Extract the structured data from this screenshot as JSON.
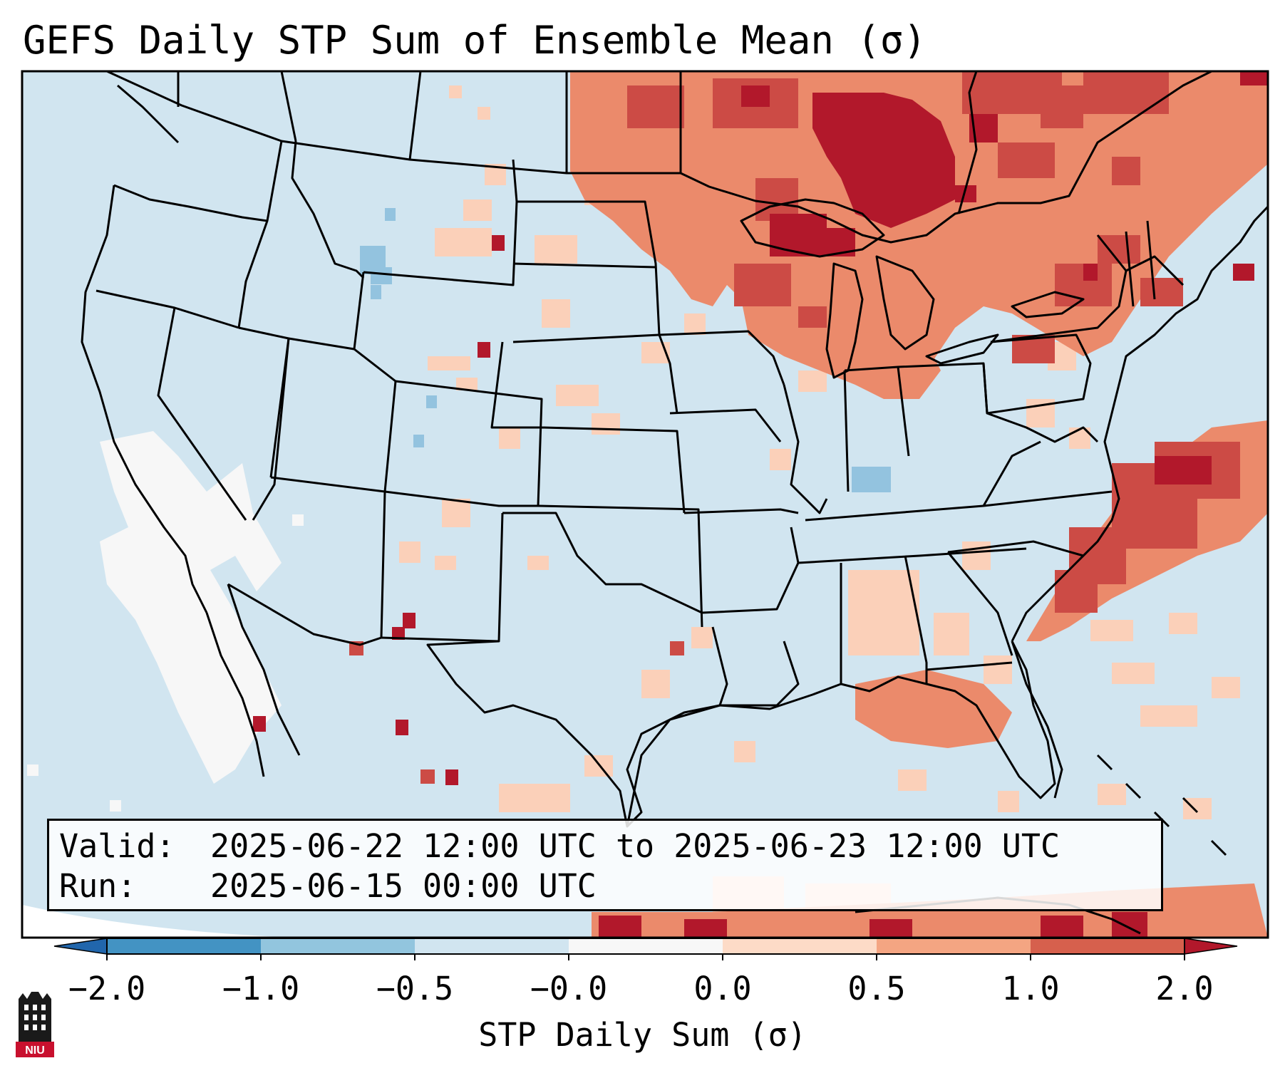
{
  "title": "GEFS Daily STP Sum of Ensemble Mean (σ)",
  "info": {
    "valid_label": "Valid:",
    "valid_value": "2025-06-22 12:00 UTC to 2025-06-23 12:00 UTC",
    "run_label": "Run:",
    "run_value": "2025-06-15 00:00 UTC"
  },
  "colorbar": {
    "label": "STP Daily Sum (σ)",
    "ticks": [
      "−2.0",
      "−1.0",
      "−0.5",
      "−0.0",
      "0.0",
      "0.5",
      "1.0",
      "2.0"
    ],
    "colors": [
      "#2b74b6",
      "#4d94c8",
      "#93c3df",
      "#d1e5f0",
      "#f7f7f7",
      "#fbd0b9",
      "#eb8a6b",
      "#cc4b45",
      "#b2182b",
      "#b2182b"
    ],
    "extend": "both"
  },
  "map": {
    "region": "Continental United States",
    "projection": "lambert conformal",
    "ocean_color": "#d1e5f0",
    "background_color": "#f7f7f7"
  },
  "logo": {
    "text": "NIU"
  }
}
